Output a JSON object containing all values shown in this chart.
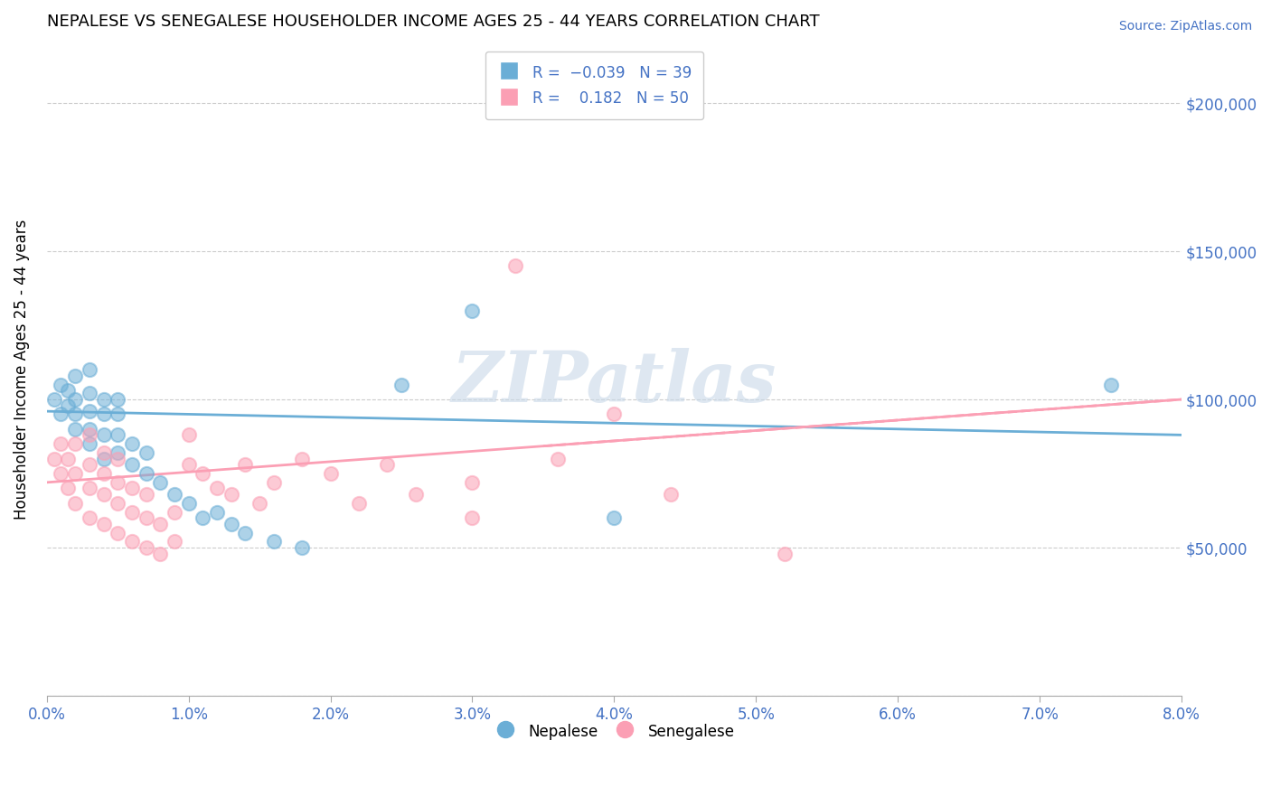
{
  "title": "NEPALESE VS SENEGALESE HOUSEHOLDER INCOME AGES 25 - 44 YEARS CORRELATION CHART",
  "source": "Source: ZipAtlas.com",
  "ylabel": "Householder Income Ages 25 - 44 years",
  "xlim": [
    0.0,
    0.08
  ],
  "ylim": [
    0,
    220000
  ],
  "yticks": [
    0,
    50000,
    100000,
    150000,
    200000
  ],
  "ytick_labels": [
    "",
    "$50,000",
    "$100,000",
    "$150,000",
    "$200,000"
  ],
  "xtick_labels": [
    "0.0%",
    "1.0%",
    "2.0%",
    "3.0%",
    "4.0%",
    "5.0%",
    "6.0%",
    "7.0%",
    "8.0%"
  ],
  "nepalese_color": "#6baed6",
  "senegalese_color": "#fb9fb4",
  "nepalese_R": -0.039,
  "nepalese_N": 39,
  "senegalese_R": 0.182,
  "senegalese_N": 50,
  "watermark": "ZIPatlas",
  "nepalese_x": [
    0.0005,
    0.001,
    0.001,
    0.0015,
    0.0015,
    0.002,
    0.002,
    0.002,
    0.002,
    0.003,
    0.003,
    0.003,
    0.003,
    0.003,
    0.004,
    0.004,
    0.004,
    0.004,
    0.005,
    0.005,
    0.005,
    0.005,
    0.006,
    0.006,
    0.007,
    0.007,
    0.008,
    0.009,
    0.01,
    0.011,
    0.012,
    0.013,
    0.014,
    0.016,
    0.018,
    0.025,
    0.03,
    0.04,
    0.075
  ],
  "nepalese_y": [
    100000,
    95000,
    105000,
    98000,
    103000,
    90000,
    95000,
    100000,
    108000,
    85000,
    90000,
    96000,
    102000,
    110000,
    80000,
    88000,
    95000,
    100000,
    82000,
    88000,
    95000,
    100000,
    78000,
    85000,
    75000,
    82000,
    72000,
    68000,
    65000,
    60000,
    62000,
    58000,
    55000,
    52000,
    50000,
    105000,
    130000,
    60000,
    105000
  ],
  "senegalese_x": [
    0.0005,
    0.001,
    0.001,
    0.0015,
    0.0015,
    0.002,
    0.002,
    0.002,
    0.003,
    0.003,
    0.003,
    0.003,
    0.004,
    0.004,
    0.004,
    0.004,
    0.005,
    0.005,
    0.005,
    0.005,
    0.006,
    0.006,
    0.006,
    0.007,
    0.007,
    0.007,
    0.008,
    0.008,
    0.009,
    0.009,
    0.01,
    0.01,
    0.011,
    0.012,
    0.013,
    0.014,
    0.015,
    0.016,
    0.018,
    0.02,
    0.022,
    0.024,
    0.026,
    0.03,
    0.033,
    0.036,
    0.04,
    0.044,
    0.03,
    0.052
  ],
  "senegalese_y": [
    80000,
    75000,
    85000,
    70000,
    80000,
    65000,
    75000,
    85000,
    60000,
    70000,
    78000,
    88000,
    58000,
    68000,
    75000,
    82000,
    55000,
    65000,
    72000,
    80000,
    52000,
    62000,
    70000,
    50000,
    60000,
    68000,
    48000,
    58000,
    52000,
    62000,
    78000,
    88000,
    75000,
    70000,
    68000,
    78000,
    65000,
    72000,
    80000,
    75000,
    65000,
    78000,
    68000,
    72000,
    145000,
    80000,
    95000,
    68000,
    60000,
    48000
  ],
  "nepalese_trendline_y0": 96000,
  "nepalese_trendline_y1": 88000,
  "senegalese_trendline_y0": 72000,
  "senegalese_trendline_y1": 100000
}
